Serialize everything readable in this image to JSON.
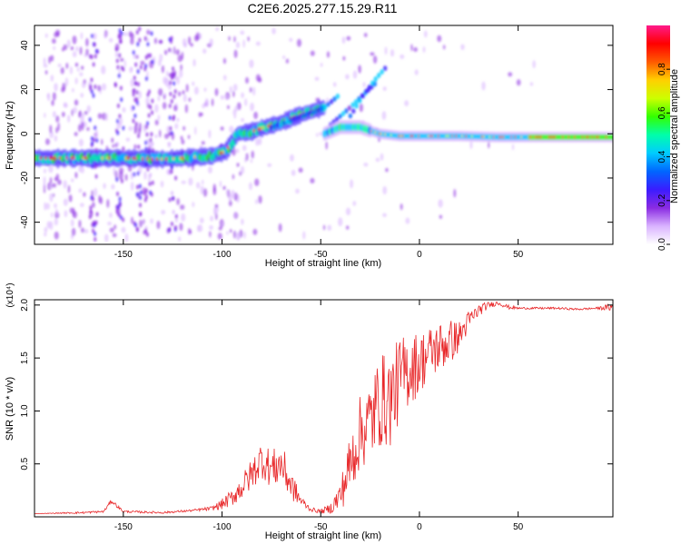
{
  "title": "C2E6.2025.277.15.29.R11",
  "chart_data": [
    {
      "type": "heatmap",
      "name": "spectrogram",
      "xlabel": "Height of straight line (km)",
      "ylabel": "Frequency (Hz)",
      "xlim": [
        -195,
        98
      ],
      "ylim": [
        -50,
        49
      ],
      "xticks": [
        -150,
        -100,
        -50,
        0,
        50
      ],
      "yticks": [
        -40,
        -20,
        0,
        20,
        40
      ],
      "colorbar": {
        "label": "Normalized spectral amplitude",
        "range": [
          0,
          1
        ],
        "ticks": [
          0.0,
          0.2,
          0.4,
          0.6,
          0.8
        ],
        "colors": [
          "#ffffff",
          "#d9b3ff",
          "#8a2be2",
          "#3b1cff",
          "#0066ff",
          "#00ccff",
          "#00ffaa",
          "#33ff00",
          "#ccff00",
          "#ffd000",
          "#ff5a00",
          "#ff0000",
          "#ff1a8a"
        ]
      },
      "ridge": {
        "x": [
          -195,
          -170,
          -150,
          -130,
          -120,
          -105,
          -98,
          -92,
          -85,
          -78,
          -70,
          -62,
          -55,
          -48
        ],
        "y": [
          -11,
          -11,
          -11,
          -11.5,
          -11,
          -10,
          -8,
          0,
          1,
          3,
          5,
          8,
          10,
          12
        ]
      },
      "ridge_secondary": {
        "x": [
          -48,
          -40,
          -30,
          -20,
          -10,
          0,
          20,
          40,
          60,
          80,
          98
        ],
        "y": [
          0,
          3,
          3,
          0,
          -1,
          -1,
          -1,
          -1.5,
          -1.5,
          -1.5,
          -1.5
        ]
      },
      "branches": [
        {
          "x": [
            -75,
            -60,
            -48,
            -40
          ],
          "y": [
            3,
            8,
            12,
            18
          ]
        },
        {
          "x": [
            -45,
            -35,
            -28,
            -22
          ],
          "y": [
            4,
            12,
            18,
            23
          ]
        },
        {
          "x": [
            -35,
            -28,
            -22,
            -16
          ],
          "y": [
            8,
            18,
            25,
            31
          ]
        }
      ]
    },
    {
      "type": "line",
      "name": "snr",
      "xlabel": "Height of straight line (km)",
      "ylabel": "SNR (10 * v/v)",
      "y_multiplier": "(x10⁴)",
      "xlim": [
        -195,
        98
      ],
      "ylim": [
        0,
        2.05
      ],
      "xticks": [
        -150,
        -100,
        -50,
        0,
        50
      ],
      "yticks": [
        0.5,
        1.0,
        1.5,
        2.0
      ],
      "color": "#e8282a",
      "x": [
        -195,
        -170,
        -160,
        -156,
        -150,
        -130,
        -115,
        -105,
        -100,
        -95,
        -90,
        -85,
        -80,
        -75,
        -70,
        -65,
        -60,
        -55,
        -50,
        -45,
        -40,
        -35,
        -30,
        -25,
        -20,
        -15,
        -10,
        -5,
        0,
        5,
        10,
        15,
        20,
        25,
        30,
        35,
        40,
        45,
        50,
        60,
        70,
        80,
        90,
        98
      ],
      "y": [
        0.03,
        0.04,
        0.05,
        0.15,
        0.05,
        0.04,
        0.06,
        0.08,
        0.12,
        0.18,
        0.28,
        0.4,
        0.55,
        0.45,
        0.5,
        0.3,
        0.15,
        0.07,
        0.05,
        0.08,
        0.2,
        0.5,
        0.8,
        0.9,
        1.1,
        1.1,
        1.3,
        1.4,
        1.45,
        1.55,
        1.6,
        1.65,
        1.7,
        1.85,
        1.95,
        2.0,
        2.02,
        1.98,
        1.97,
        1.97,
        1.97,
        1.96,
        1.97,
        1.98
      ],
      "noise": [
        0,
        0.01,
        0.01,
        0.02,
        0.01,
        0.01,
        0.01,
        0.02,
        0.05,
        0.08,
        0.12,
        0.15,
        0.18,
        0.18,
        0.2,
        0.15,
        0.05,
        0.02,
        0.02,
        0.05,
        0.15,
        0.3,
        0.35,
        0.4,
        0.45,
        0.45,
        0.4,
        0.35,
        0.3,
        0.25,
        0.25,
        0.22,
        0.15,
        0.1,
        0.06,
        0.03,
        0.02,
        0.02,
        0.01,
        0.01,
        0.01,
        0.01,
        0.01,
        0.04
      ]
    }
  ]
}
